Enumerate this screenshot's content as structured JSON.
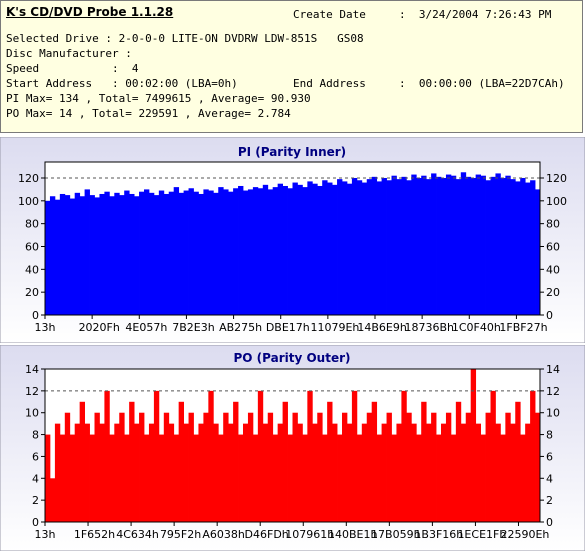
{
  "info": {
    "app_title": "K's CD/DVD Probe 1.1.28",
    "create_date_label": "Create Date",
    "create_date_value": ":  3/24/2004 7:26:43 PM",
    "line_drive": "Selected Drive : 2-0-0-0 LITE-ON DVDRW LDW-851S   GS08",
    "line_manufacturer": "Disc Manufacturer :",
    "line_speed": "Speed           :  4",
    "line_start": "Start Address   : 00:02:00 (LBA=0h)",
    "end_address_label": "End Address",
    "end_address_value": ":  00:00:00 (LBA=22D7CAh)",
    "line_pi": "PI Max= 134 , Total= 7499615 , Average= 90.930",
    "line_po": "PO Max= 14 , Total= 229591 , Average= 2.784"
  },
  "chart_data": [
    {
      "type": "bar",
      "title": "PI (Parity Inner)",
      "color": "#0000ff",
      "ylim": [
        0,
        134
      ],
      "yticks": [
        0,
        20,
        40,
        60,
        80,
        100,
        120
      ],
      "reference_line": 120,
      "xticklabels": [
        "13h",
        "2020Fh",
        "4E057h",
        "7B2E3h",
        "AB275h",
        "DBE17h",
        "11079Eh",
        "14B6E9h",
        "18736Bh",
        "1C0F40h",
        "1FBF27h"
      ],
      "values": [
        100,
        104,
        101,
        106,
        105,
        102,
        107,
        104,
        110,
        105,
        103,
        106,
        108,
        104,
        107,
        105,
        109,
        106,
        104,
        108,
        110,
        107,
        105,
        109,
        106,
        108,
        112,
        107,
        109,
        111,
        108,
        106,
        110,
        109,
        107,
        112,
        110,
        108,
        111,
        113,
        109,
        110,
        112,
        111,
        114,
        110,
        112,
        115,
        113,
        111,
        116,
        114,
        112,
        117,
        115,
        113,
        118,
        116,
        114,
        119,
        117,
        115,
        120,
        118,
        116,
        119,
        121,
        117,
        120,
        118,
        122,
        119,
        121,
        118,
        123,
        120,
        122,
        119,
        124,
        121,
        120,
        123,
        122,
        119,
        125,
        121,
        120,
        123,
        122,
        118,
        121,
        124,
        120,
        122,
        119,
        117,
        120,
        116,
        118,
        110
      ]
    },
    {
      "type": "bar",
      "title": "PO (Parity Outer)",
      "color": "#ff0000",
      "ylim": [
        0,
        14
      ],
      "yticks": [
        0,
        2,
        4,
        6,
        8,
        10,
        12,
        14
      ],
      "reference_line": 12,
      "xticklabels": [
        "13h",
        "1F652h",
        "4C634h",
        "795F2h",
        "A6038h",
        "D46FDh",
        "107961h",
        "140BE1h",
        "17B059h",
        "1B3F16h",
        "1ECE1Fh",
        "22590Eh"
      ],
      "values": [
        8,
        4,
        9,
        8,
        10,
        8,
        9,
        11,
        9,
        8,
        10,
        9,
        12,
        8,
        9,
        10,
        8,
        11,
        9,
        10,
        8,
        9,
        12,
        8,
        10,
        9,
        8,
        11,
        9,
        10,
        8,
        9,
        10,
        12,
        9,
        8,
        10,
        9,
        11,
        8,
        9,
        10,
        8,
        12,
        9,
        10,
        8,
        9,
        11,
        8,
        10,
        9,
        8,
        12,
        9,
        10,
        8,
        11,
        9,
        8,
        10,
        9,
        12,
        8,
        9,
        10,
        11,
        8,
        9,
        10,
        8,
        9,
        12,
        10,
        9,
        8,
        11,
        9,
        10,
        8,
        9,
        10,
        8,
        11,
        9,
        10,
        14,
        9,
        8,
        10,
        12,
        9,
        8,
        10,
        9,
        11,
        8,
        9,
        12,
        10
      ]
    }
  ]
}
